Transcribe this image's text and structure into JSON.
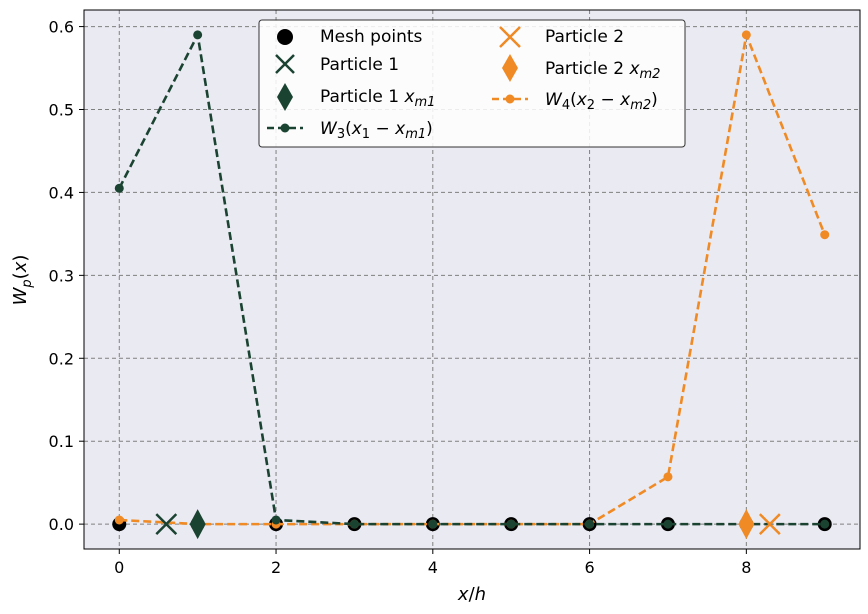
{
  "chart_data": {
    "type": "line",
    "xlabel": "x/h",
    "ylabel": "W_p(x)",
    "xlim": [
      -0.45,
      9.45
    ],
    "ylim": [
      -0.03,
      0.62
    ],
    "grid": true,
    "legend_placement": "top-center",
    "x_ticks": [
      "0",
      "2",
      "4",
      "6",
      "8"
    ],
    "y_ticks": [
      "0.0",
      "0.1",
      "0.2",
      "0.3",
      "0.4",
      "0.5",
      "0.6"
    ],
    "colors": {
      "particle1": "#1b4332",
      "particle2": "#f08a24",
      "mesh": "#000000",
      "background": "#eaeaf2"
    },
    "mesh_points": [
      0,
      1,
      2,
      3,
      4,
      5,
      6,
      7,
      8,
      9
    ],
    "particle1": {
      "x": 0.6,
      "xm": 1
    },
    "particle2": {
      "x": 8.3,
      "xm": 8
    },
    "series": [
      {
        "name": "W_3(x_1 - x_m1)",
        "x": [
          0,
          1,
          2,
          3,
          4,
          5,
          6,
          7,
          8,
          9
        ],
        "values": [
          0.405,
          0.59,
          0.005,
          0,
          0,
          0,
          0,
          0,
          0,
          0
        ]
      },
      {
        "name": "W_4(x_2 - x_m2)",
        "x": [
          0,
          1,
          2,
          3,
          4,
          5,
          6,
          7,
          8,
          9
        ],
        "values": [
          0.005,
          0,
          0,
          0,
          0,
          0,
          0,
          0.057,
          0.59,
          0.349
        ]
      }
    ],
    "legend": [
      "Mesh points",
      "Particle 1",
      "Particle 1 x_m1",
      "W_3(x_1 - x_m1)",
      "Particle 2",
      "Particle 2 x_m2",
      "W_4(x_2 - x_m2)"
    ]
  }
}
